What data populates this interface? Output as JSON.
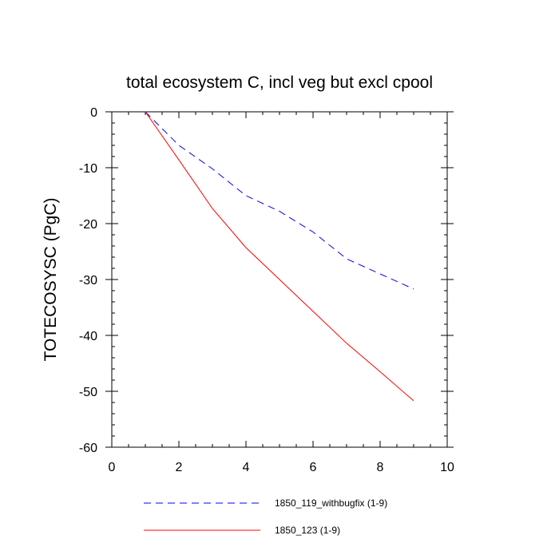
{
  "chart_data": {
    "type": "line",
    "title": "total ecosystem C, incl veg but excl cpool",
    "xlabel": "",
    "ylabel": "TOTECOSYSC  (PgC)",
    "xlim": [
      0,
      10
    ],
    "ylim": [
      -60,
      0
    ],
    "xticks": [
      "0",
      "2",
      "4",
      "6",
      "8",
      "10"
    ],
    "yticks": [
      "0",
      "-10",
      "-20",
      "-30",
      "-40",
      "-50",
      "-60"
    ],
    "grid": false,
    "legend_position": "bottom",
    "series": [
      {
        "name": "1850_119_withbugfix (1-9)",
        "color": "#0000ff",
        "style": "dashed",
        "x": [
          1,
          2,
          3,
          4,
          5,
          6,
          7,
          8,
          9
        ],
        "y": [
          0,
          -6,
          -10.2,
          -15,
          -17.8,
          -21.5,
          -26.3,
          -29,
          -31.7
        ]
      },
      {
        "name": "1850_123 (1-9)",
        "color": "#ff0000",
        "style": "solid",
        "x": [
          1,
          2,
          3,
          4,
          5,
          6,
          7,
          8,
          9
        ],
        "y": [
          0,
          -8.6,
          -17.3,
          -24.3,
          -30,
          -35.7,
          -41.4,
          -46.5,
          -51.7
        ]
      }
    ]
  }
}
